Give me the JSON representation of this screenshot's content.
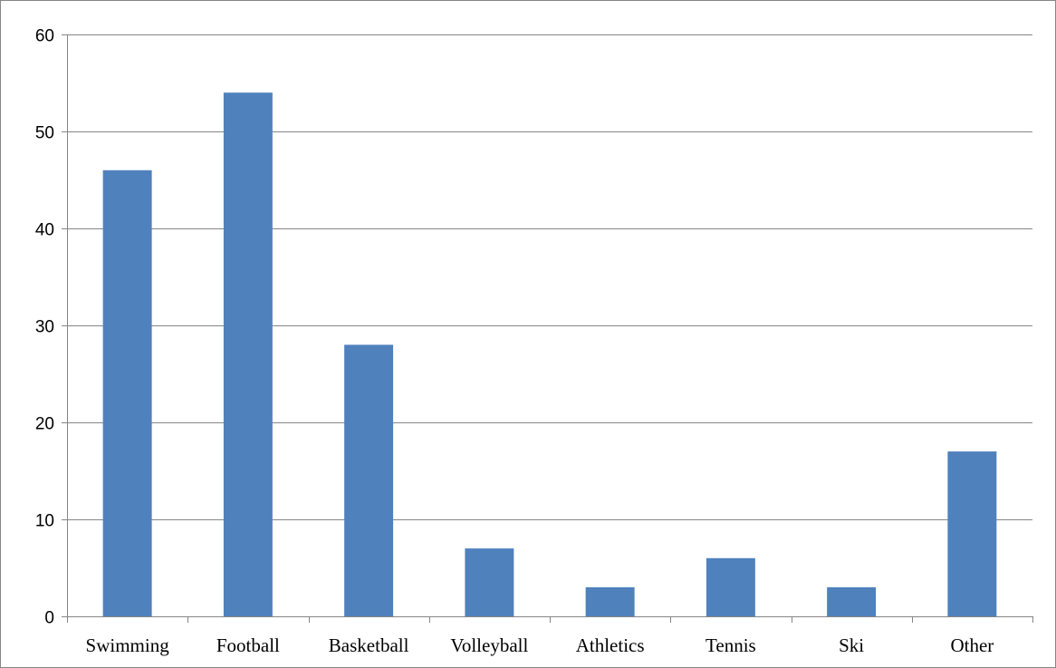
{
  "chart_data": {
    "type": "bar",
    "title": "",
    "xlabel": "",
    "ylabel": "",
    "categories": [
      "Swimming",
      "Football",
      "Basketball",
      "Volleyball",
      "Athletics",
      "Tennis",
      "Ski",
      "Other"
    ],
    "values": [
      46,
      54,
      28,
      7,
      3,
      6,
      3,
      17
    ],
    "ylim": [
      0,
      60
    ],
    "yticks": [
      0,
      10,
      20,
      30,
      40,
      50,
      60
    ],
    "ytick_labels": [
      "0",
      "10",
      "20",
      "30",
      "40",
      "50",
      "60"
    ],
    "grid": "horizontal",
    "legend": "none",
    "bar_color": "#4F81BD",
    "gridline_color": "#868686"
  }
}
